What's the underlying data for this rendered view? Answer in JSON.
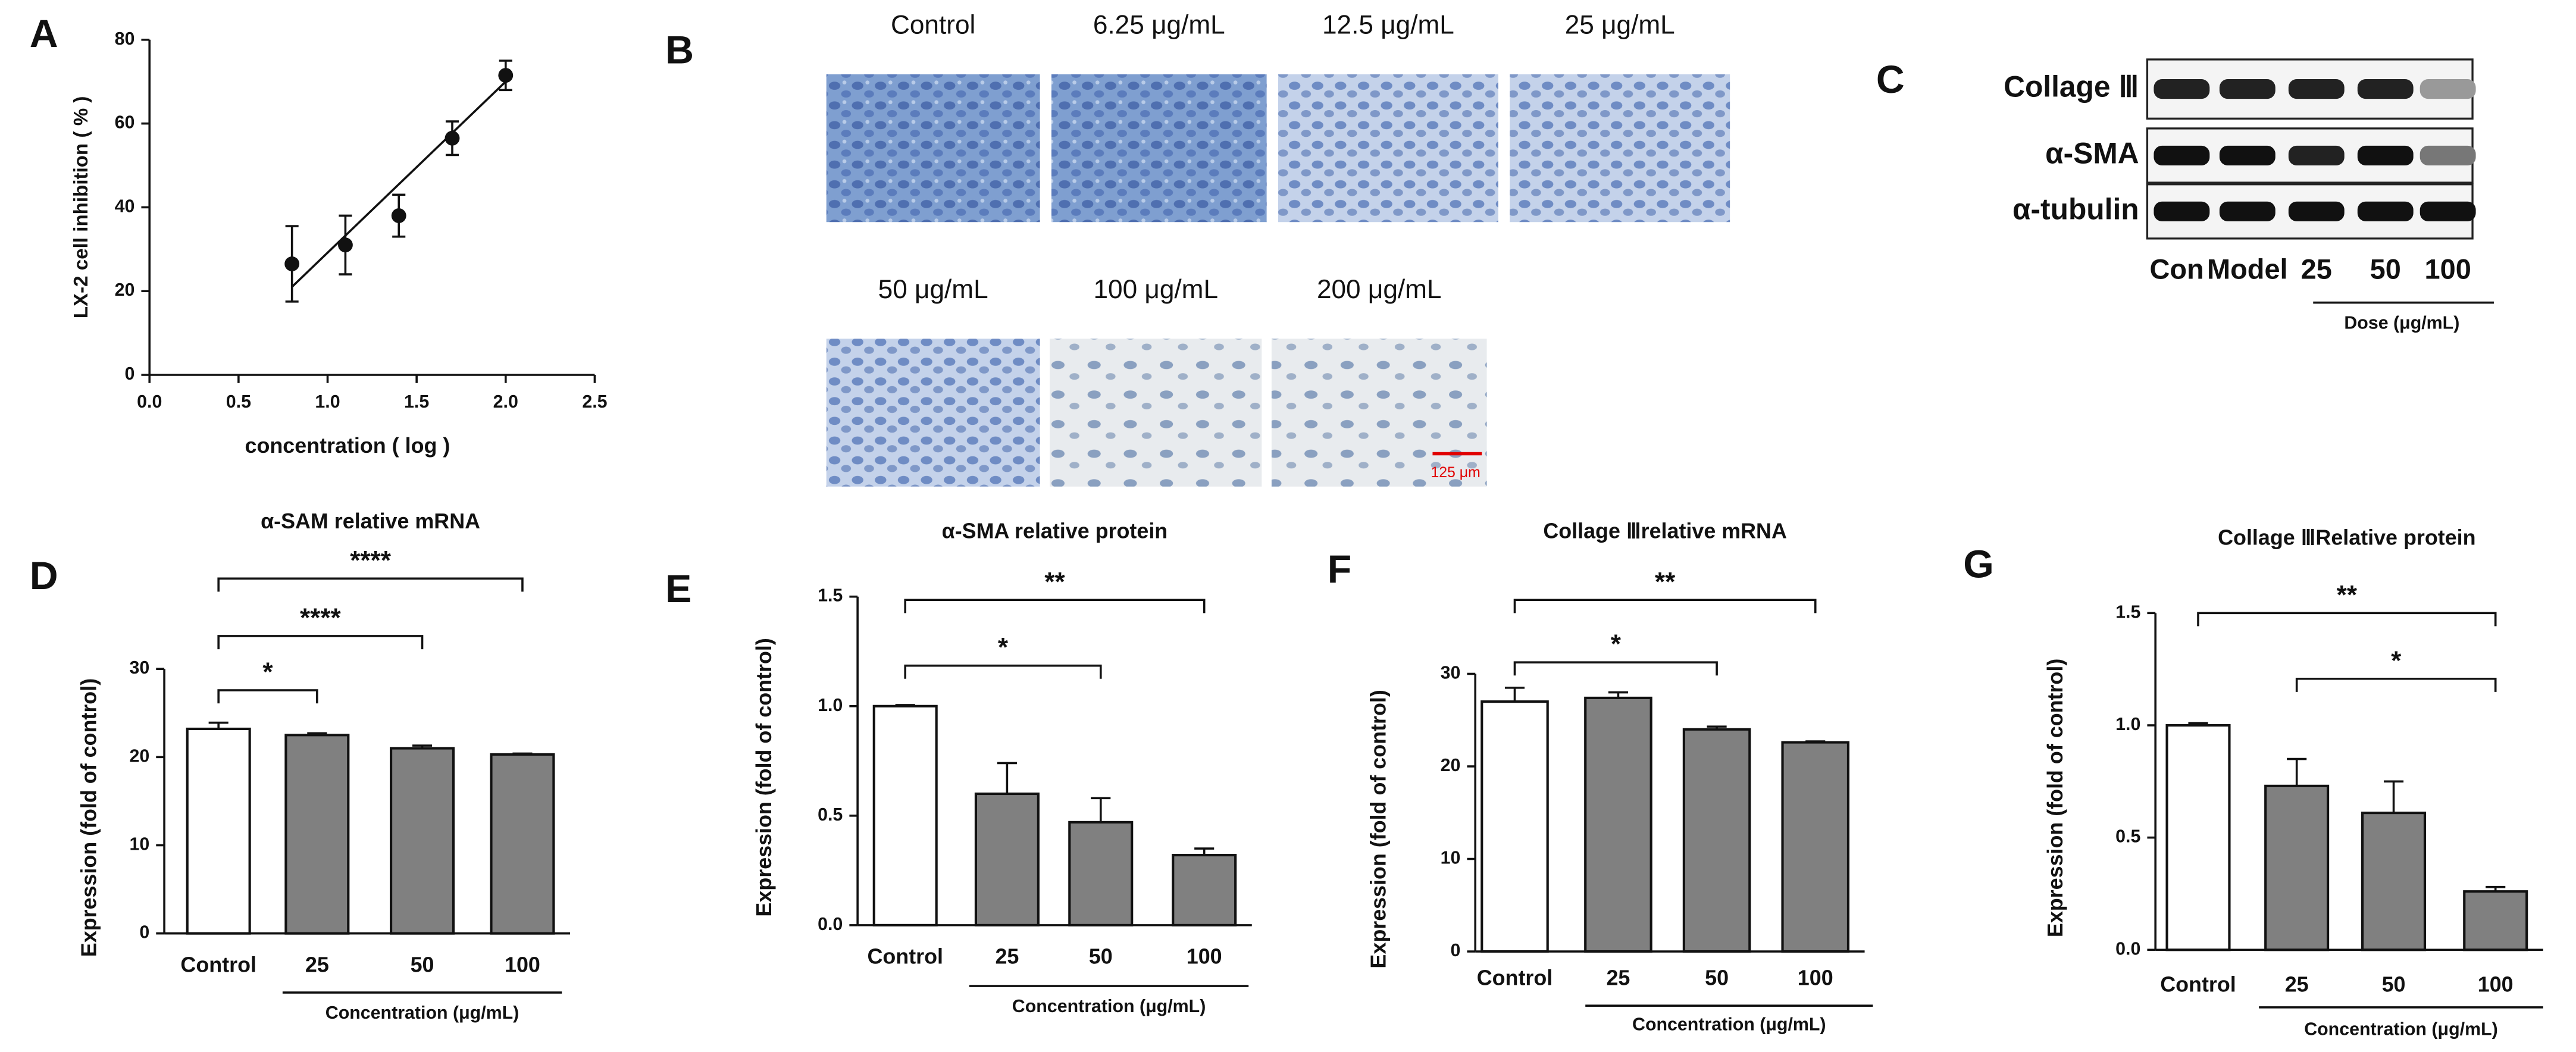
{
  "chart_data": [
    {
      "type": "scatter",
      "panel": "A",
      "xlabel": "concentration ( log )",
      "ylabel": "LX-2 cell inhibition ( % )",
      "x": [
        0.8,
        1.1,
        1.4,
        1.7,
        2.0
      ],
      "values": [
        26.5,
        31,
        38,
        56.5,
        71.5
      ],
      "errors": [
        9,
        7,
        5,
        4,
        3.5
      ],
      "color": "#111111",
      "fit_line": {
        "x": [
          0.8,
          2.0
        ],
        "values": [
          21,
          70
        ]
      },
      "xlim": [
        0,
        2.5
      ],
      "xticks": [
        {
          "value": 0,
          "label": "0.0"
        },
        {
          "value": 0.5,
          "label": "0.5"
        },
        {
          "value": 1,
          "label": "1.0"
        },
        {
          "value": 1.5,
          "label": "1.5"
        },
        {
          "value": 2,
          "label": "2.0"
        },
        {
          "value": 2.5,
          "label": "2.5"
        }
      ],
      "ylim": [
        0,
        80
      ],
      "yticks": [
        0,
        20,
        40,
        60,
        80
      ]
    },
    {
      "type": "bar",
      "panel": "D",
      "title": "α-SAM relative mRNA",
      "ylabel": "Expression (fold of control)",
      "group_label": "Concentration (μg/mL)",
      "categories": [
        "Control",
        "25",
        "50",
        "100"
      ],
      "values": [
        23.2,
        22.5,
        21,
        20.3
      ],
      "errors": [
        0.7,
        0.2,
        0.3,
        0.1
      ],
      "colors": [
        "#ffffff",
        "#808080",
        "#808080",
        "#808080"
      ],
      "ylim": [
        0,
        30
      ],
      "yticks": [
        0,
        10,
        20,
        30
      ],
      "significance": [
        {
          "from": "Control",
          "to": "25",
          "label": "*"
        },
        {
          "from": "Control",
          "to": "50",
          "label": "****"
        },
        {
          "from": "Control",
          "to": "100",
          "label": "****"
        }
      ]
    },
    {
      "type": "bar",
      "panel": "E",
      "title": "α-SMA relative protein",
      "ylabel": "Expression (fold of control)",
      "group_label": "Concentration (μg/mL)",
      "categories": [
        "Control",
        "25",
        "50",
        "100"
      ],
      "values": [
        1.0,
        0.6,
        0.47,
        0.32
      ],
      "errors": [
        0.005,
        0.14,
        0.11,
        0.03
      ],
      "colors": [
        "#ffffff",
        "#808080",
        "#808080",
        "#808080"
      ],
      "ylim": [
        0,
        1.5
      ],
      "yticks": [
        {
          "value": 0,
          "label": "0.0"
        },
        {
          "value": 0.5,
          "label": "0.5"
        },
        {
          "value": 1,
          "label": "1.0"
        },
        {
          "value": 1.5,
          "label": "1.5"
        }
      ],
      "significance": [
        {
          "from": "Control",
          "to": "50",
          "label": "*"
        },
        {
          "from": "Control",
          "to": "100",
          "label": "**"
        }
      ]
    },
    {
      "type": "bar",
      "panel": "F",
      "title": "Collage Ⅲrelative mRNA",
      "ylabel": "Expression (fold of control)",
      "group_label": "Concentration (μg/mL)",
      "categories": [
        "Control",
        "25",
        "50",
        "100"
      ],
      "values": [
        27,
        27.4,
        24,
        22.6
      ],
      "errors": [
        1.5,
        0.6,
        0.3,
        0.1
      ],
      "colors": [
        "#ffffff",
        "#808080",
        "#808080",
        "#808080"
      ],
      "ylim": [
        0,
        30
      ],
      "yticks": [
        0,
        10,
        20,
        30
      ],
      "significance": [
        {
          "from": "Control",
          "to": "50",
          "label": "*"
        },
        {
          "from": "Control",
          "to": "100",
          "label": "**"
        }
      ]
    },
    {
      "type": "bar",
      "panel": "G",
      "title": "Collage ⅢRelative protein",
      "ylabel": "Expression (fold of control)",
      "group_label": "Concentration (μg/mL)",
      "categories": [
        "Control",
        "25",
        "50",
        "100"
      ],
      "values": [
        1.0,
        0.73,
        0.61,
        0.26
      ],
      "errors": [
        0.01,
        0.12,
        0.14,
        0.02
      ],
      "colors": [
        "#ffffff",
        "#808080",
        "#808080",
        "#808080"
      ],
      "ylim": [
        0,
        1.5
      ],
      "yticks": [
        {
          "value": 0,
          "label": "0.0"
        },
        {
          "value": 0.5,
          "label": "0.5"
        },
        {
          "value": 1,
          "label": "1.0"
        },
        {
          "value": 1.5,
          "label": "1.5"
        }
      ],
      "significance": [
        {
          "from": "Control",
          "to": "100",
          "label": "**"
        },
        {
          "from": "25",
          "to": "100",
          "label": "*"
        }
      ]
    }
  ],
  "micrographs": {
    "panel": "B",
    "labels": [
      "Control",
      "6.25 μg/mL",
      "12.5 μg/mL",
      "25 μg/mL",
      "50 μg/mL",
      "100 μg/mL",
      "200 μg/mL"
    ],
    "scale_bar": "125 μm"
  },
  "western_blot": {
    "panel": "C",
    "rows": [
      "Collage Ⅲ",
      "α-SMA",
      "α-tubulin"
    ],
    "lanes": [
      "Con",
      "Model",
      "25",
      "50",
      "100"
    ],
    "dose_label": "Dose (μg/mL)"
  }
}
